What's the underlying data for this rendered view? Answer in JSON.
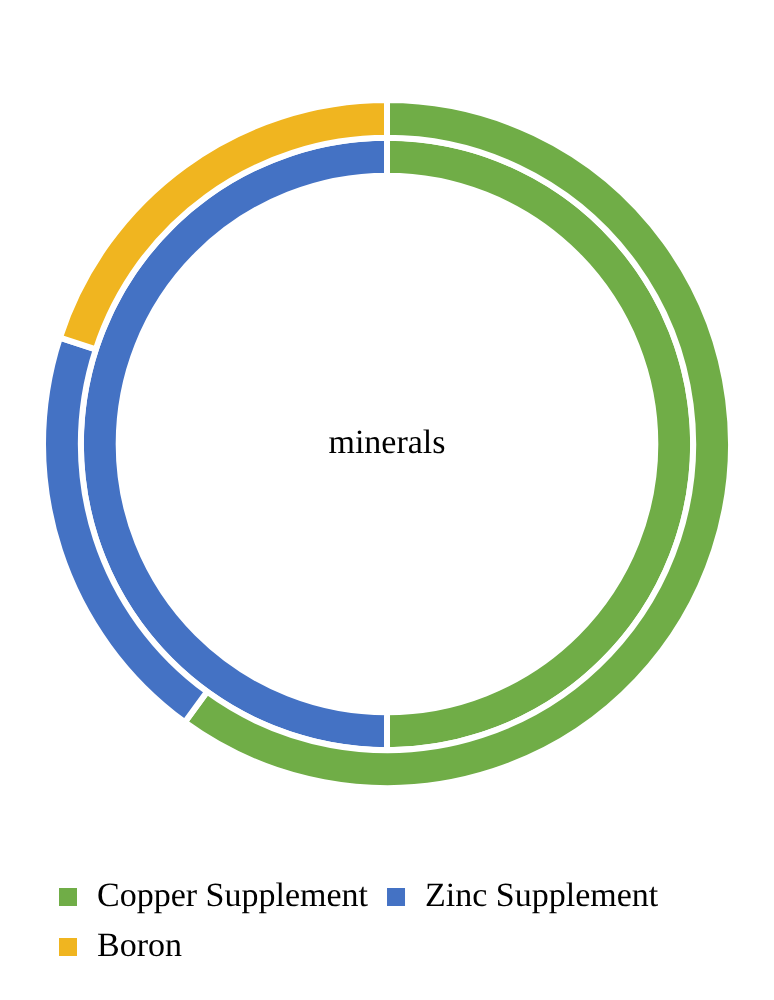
{
  "chart_data": {
    "type": "donut",
    "categories": [
      "Copper Supplement",
      "Zinc Supplement",
      "Boron"
    ],
    "colors": [
      "#70ad47",
      "#4472c4",
      "#f0b520"
    ],
    "series": [
      {
        "values": [
          60,
          20,
          20
        ]
      },
      {
        "values": [
          50,
          50,
          0
        ]
      }
    ],
    "annotations": [
      "minerals"
    ],
    "legend": "bottom"
  }
}
